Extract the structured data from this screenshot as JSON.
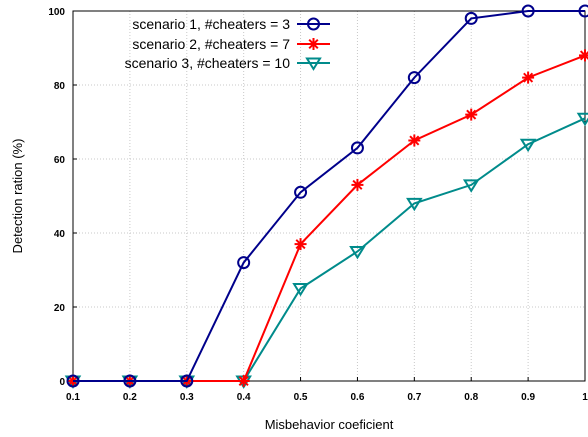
{
  "chart_data": {
    "type": "line",
    "title": "",
    "xlabel": "Misbehavior coeficient",
    "ylabel": "Detection ration (%)",
    "x": [
      0.1,
      0.2,
      0.3,
      0.4,
      0.5,
      0.6,
      0.7,
      0.8,
      0.9,
      1
    ],
    "x_tick_labels": [
      "0.1",
      "0.2",
      "0.3",
      "0.4",
      "0.5",
      "0.6",
      "0.7",
      "0.8",
      "0.9",
      "1"
    ],
    "y_tick_labels": [
      "0",
      "20",
      "40",
      "60",
      "80",
      "100"
    ],
    "xlim": [
      0.1,
      1
    ],
    "ylim": [
      0,
      100
    ],
    "grid": true,
    "legend_position": "top-left",
    "series": [
      {
        "name": "scenario 1, #cheaters = 3",
        "color": "#00008b",
        "marker": "circle",
        "values": [
          0,
          0,
          0,
          32,
          51,
          63,
          82,
          98,
          100,
          100
        ]
      },
      {
        "name": "scenario 2, #cheaters = 7",
        "color": "#ff0000",
        "marker": "star",
        "values": [
          0,
          0,
          0,
          0,
          37,
          53,
          65,
          72,
          82,
          88
        ]
      },
      {
        "name": "scenario 3, #cheaters = 10",
        "color": "#008b8b",
        "marker": "triangle-down",
        "values": [
          0,
          0,
          0,
          0,
          25,
          35,
          48,
          53,
          64,
          71
        ]
      }
    ]
  }
}
